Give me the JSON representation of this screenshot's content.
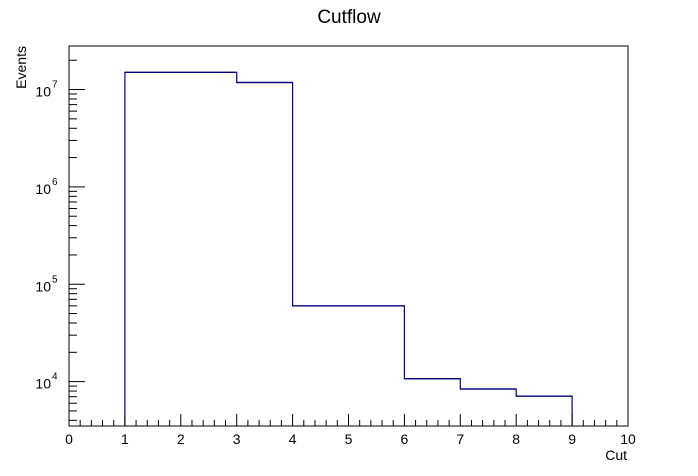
{
  "chart_data": {
    "type": "histogram",
    "title": "Cutflow",
    "xlabel": "Cut",
    "ylabel": "Events",
    "xlim": [
      0,
      10
    ],
    "ylim": [
      3500,
      28000000
    ],
    "yscale": "log",
    "grid": false,
    "legend": "none",
    "line_color": "#000080",
    "x_ticks": [
      "0",
      "1",
      "2",
      "3",
      "4",
      "5",
      "6",
      "7",
      "8",
      "9",
      "10"
    ],
    "y_ticks": [
      {
        "base": "10",
        "exp": "4",
        "value": 10000
      },
      {
        "base": "10",
        "exp": "5",
        "value": 100000
      },
      {
        "base": "10",
        "exp": "6",
        "value": 1000000
      },
      {
        "base": "10",
        "exp": "7",
        "value": 10000000
      }
    ],
    "bins": [
      {
        "x0": 1,
        "x1": 3,
        "value": 15000000
      },
      {
        "x0": 3,
        "x1": 4,
        "value": 11800000
      },
      {
        "x0": 4,
        "x1": 6,
        "value": 60000
      },
      {
        "x0": 6,
        "x1": 7,
        "value": 10700
      },
      {
        "x0": 7,
        "x1": 8,
        "value": 8400
      },
      {
        "x0": 8,
        "x1": 9,
        "value": 7100
      }
    ]
  }
}
